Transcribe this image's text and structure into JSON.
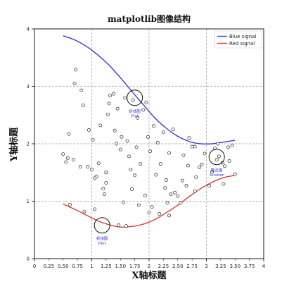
{
  "chart_data": {
    "type": "scatter",
    "title": "matplotlib图像结构",
    "xlabel": "X轴标题",
    "ylabel": "Y轴标题",
    "xlim": [
      0,
      4
    ],
    "ylim": [
      0,
      4
    ],
    "x_major_ticks": [
      "0",
      "1",
      "2",
      "3",
      "4"
    ],
    "x_minor_ticks": [
      "0.25",
      "0.50",
      "0.75",
      "1.25",
      "1.50",
      "1.75",
      "2.25",
      "2.50",
      "2.75",
      "3.25",
      "3.50",
      "3.75"
    ],
    "y_major_ticks": [
      "0",
      "1",
      "2",
      "3",
      "4"
    ],
    "grid": true,
    "legend": {
      "placement": "top-right",
      "entries": [
        "Blue signal",
        "Red signal"
      ]
    },
    "colors": {
      "blue": "#3b3bd9",
      "red": "#d93b3b",
      "annotation": "#2b2bd6"
    },
    "series": [
      {
        "name": "Blue signal",
        "kind": "line",
        "x": [
          0.5,
          0.7,
          0.9,
          1.1,
          1.3,
          1.5,
          1.7,
          1.9,
          2.1,
          2.3,
          2.5,
          2.7,
          2.9,
          3.1,
          3.3,
          3.5
        ],
        "y": [
          3.88,
          3.81,
          3.7,
          3.55,
          3.37,
          3.15,
          2.91,
          2.68,
          2.45,
          2.27,
          2.13,
          2.04,
          2.0,
          2.0,
          2.03,
          2.06
        ]
      },
      {
        "name": "Red signal",
        "kind": "line",
        "x": [
          0.5,
          0.7,
          0.9,
          1.1,
          1.3,
          1.5,
          1.7,
          1.9,
          2.1,
          2.3,
          2.5,
          2.7,
          2.9,
          3.1,
          3.3,
          3.5
        ],
        "y": [
          0.95,
          0.86,
          0.76,
          0.66,
          0.59,
          0.55,
          0.56,
          0.6,
          0.68,
          0.8,
          0.93,
          1.08,
          1.22,
          1.33,
          1.41,
          1.45
        ]
      },
      {
        "kind": "scatter",
        "points": [
          [
            0.5,
            1.82
          ],
          [
            0.55,
            1.68
          ],
          [
            0.58,
            1.75
          ],
          [
            0.6,
            2.17
          ],
          [
            0.62,
            0.94
          ],
          [
            0.68,
            1.72
          ],
          [
            0.7,
            3.05
          ],
          [
            0.72,
            3.29
          ],
          [
            0.8,
            1.6
          ],
          [
            0.82,
            2.93
          ],
          [
            0.85,
            2.67
          ],
          [
            0.87,
            0.82
          ],
          [
            0.93,
            1.6
          ],
          [
            0.95,
            2.24
          ],
          [
            1.0,
            1.55
          ],
          [
            1.02,
            2.07
          ],
          [
            1.05,
            0.86
          ],
          [
            1.08,
            1.43
          ],
          [
            1.12,
            1.66
          ],
          [
            1.15,
            2.32
          ],
          [
            1.2,
            1.22
          ],
          [
            1.22,
            1.12
          ],
          [
            1.25,
            1.32
          ],
          [
            1.28,
            2.51
          ],
          [
            1.3,
            2.7
          ],
          [
            1.32,
            2.84
          ],
          [
            1.38,
            2.87
          ],
          [
            1.4,
            2.23
          ],
          [
            1.45,
            2.61
          ],
          [
            1.47,
            0.58
          ],
          [
            1.5,
            1.9
          ],
          [
            1.52,
            2.12
          ],
          [
            1.55,
            0.98
          ],
          [
            1.58,
            2.8
          ],
          [
            1.62,
            2.05
          ],
          [
            1.65,
            1.78
          ],
          [
            1.68,
            1.55
          ],
          [
            1.7,
            1.21
          ],
          [
            1.72,
            2.76
          ],
          [
            1.75,
            1.45
          ],
          [
            1.78,
            1.94
          ],
          [
            1.82,
            0.93
          ],
          [
            1.85,
            1.65
          ],
          [
            1.9,
            2.59
          ],
          [
            1.93,
            1.1
          ],
          [
            1.95,
            2.72
          ],
          [
            1.98,
            2.12
          ],
          [
            2.0,
            0.8
          ],
          [
            2.02,
            1.87
          ],
          [
            2.05,
            0.9
          ],
          [
            2.08,
            2.31
          ],
          [
            2.12,
            1.46
          ],
          [
            2.15,
            2.02
          ],
          [
            2.18,
            0.78
          ],
          [
            2.2,
            1.65
          ],
          [
            2.25,
            2.2
          ],
          [
            2.28,
            1.23
          ],
          [
            2.3,
            1.37
          ],
          [
            2.32,
            0.97
          ],
          [
            2.35,
            1.84
          ],
          [
            2.38,
            1.12
          ],
          [
            2.42,
            2.25
          ],
          [
            2.45,
            1.15
          ],
          [
            2.5,
            1.09
          ],
          [
            2.55,
            0.97
          ],
          [
            2.58,
            1.36
          ],
          [
            2.6,
            1.8
          ],
          [
            2.65,
            1.27
          ],
          [
            2.68,
            1.62
          ],
          [
            2.7,
            2.1
          ],
          [
            2.75,
            1.95
          ],
          [
            2.8,
            1.17
          ],
          [
            2.82,
            1.42
          ],
          [
            2.88,
            1.59
          ],
          [
            2.92,
            1.64
          ],
          [
            2.97,
            1.83
          ],
          [
            3.05,
            1.27
          ],
          [
            3.1,
            1.51
          ],
          [
            3.15,
            1.92
          ],
          [
            3.18,
            1.72
          ],
          [
            3.22,
            1.78
          ],
          [
            3.28,
            1.67
          ],
          [
            3.32,
            1.61
          ],
          [
            3.38,
            1.94
          ],
          [
            3.45,
            1.97
          ],
          [
            3.5,
            1.47
          ],
          [
            1.8,
            2.45
          ],
          [
            2.8,
            1.95
          ],
          [
            1.05,
            1.4
          ],
          [
            1.6,
            0.57
          ],
          [
            2.35,
            0.75
          ],
          [
            1.25,
            1.5
          ],
          [
            1.43,
            2.0
          ],
          [
            3.3,
            1.3
          ],
          [
            3.2,
            2.0
          ],
          [
            3.4,
            1.7
          ]
        ]
      }
    ],
    "annotations": [
      {
        "label": "折线图",
        "sublabel": "Plot",
        "x": 1.75,
        "y": 2.8
      },
      {
        "label": "折线图",
        "sublabel": "Plot",
        "x": 1.18,
        "y": 0.58
      },
      {
        "label": "散点图",
        "sublabel": "Scatter",
        "x": 3.18,
        "y": 1.77
      }
    ]
  }
}
